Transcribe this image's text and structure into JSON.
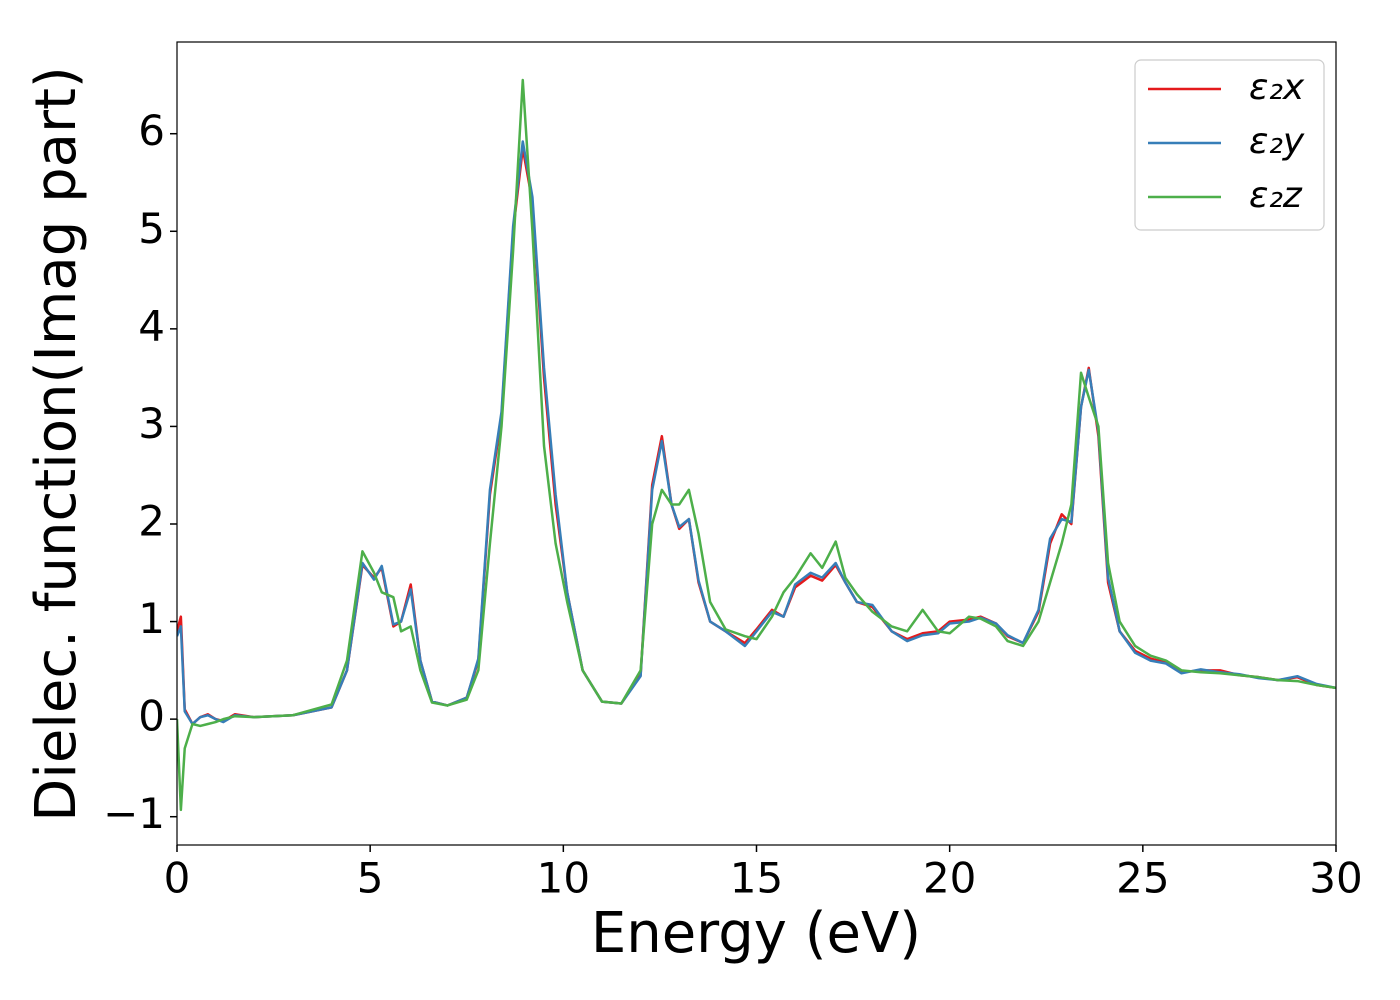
{
  "chart_data": {
    "type": "line",
    "x_label": "Energy (eV)",
    "y_label": "Dielec. function(Imag part)",
    "x": [
      0,
      0.1,
      0.2,
      0.4,
      0.6,
      0.8,
      1.0,
      1.2,
      1.5,
      2,
      3,
      4,
      4.4,
      4.8,
      5.1,
      5.3,
      5.6,
      5.8,
      6.05,
      6.3,
      6.6,
      7,
      7.5,
      7.8,
      8.1,
      8.4,
      8.7,
      8.95,
      9.2,
      9.5,
      9.8,
      10.1,
      10.5,
      11,
      11.5,
      12,
      12.3,
      12.55,
      12.8,
      13.0,
      13.25,
      13.5,
      13.8,
      14.2,
      14.7,
      15.0,
      15.4,
      15.7,
      16.0,
      16.4,
      16.7,
      17.05,
      17.3,
      17.6,
      18.0,
      18.5,
      18.9,
      19.3,
      19.7,
      20.0,
      20.5,
      20.8,
      21.2,
      21.5,
      21.9,
      22.3,
      22.6,
      22.9,
      23.15,
      23.4,
      23.6,
      23.85,
      24.1,
      24.4,
      24.8,
      25.2,
      25.6,
      26.0,
      26.5,
      27.0,
      27.5,
      28.0,
      28.5,
      29.0,
      29.5,
      30
    ],
    "series": [
      {
        "name": "ε₂x",
        "color": "#e41a1c",
        "values": [
          0.9,
          1.05,
          0.1,
          -0.05,
          0.02,
          0.05,
          0.0,
          -0.02,
          0.05,
          0.02,
          0.04,
          0.12,
          0.5,
          1.58,
          1.45,
          1.55,
          0.95,
          1.0,
          1.38,
          0.6,
          0.18,
          0.14,
          0.22,
          0.6,
          2.3,
          3.1,
          5.0,
          5.85,
          5.3,
          3.5,
          2.2,
          1.3,
          0.5,
          0.18,
          0.16,
          0.45,
          2.4,
          2.9,
          2.2,
          1.95,
          2.05,
          1.4,
          1.0,
          0.9,
          0.78,
          0.92,
          1.12,
          1.05,
          1.35,
          1.47,
          1.42,
          1.58,
          1.4,
          1.2,
          1.15,
          0.9,
          0.82,
          0.88,
          0.9,
          1.0,
          1.02,
          1.05,
          0.98,
          0.85,
          0.78,
          1.1,
          1.8,
          2.1,
          2.0,
          3.2,
          3.6,
          2.9,
          1.4,
          0.9,
          0.7,
          0.62,
          0.58,
          0.48,
          0.5,
          0.5,
          0.45,
          0.43,
          0.4,
          0.43,
          0.35,
          0.32
        ]
      },
      {
        "name": "ε₂y",
        "color": "#377eb8",
        "values": [
          0.85,
          0.95,
          0.08,
          -0.05,
          0.02,
          0.04,
          0.0,
          -0.03,
          0.04,
          0.02,
          0.04,
          0.12,
          0.5,
          1.6,
          1.43,
          1.57,
          0.97,
          1.0,
          1.33,
          0.6,
          0.18,
          0.14,
          0.22,
          0.62,
          2.35,
          3.15,
          5.05,
          5.92,
          5.35,
          3.6,
          2.3,
          1.3,
          0.5,
          0.18,
          0.16,
          0.44,
          2.35,
          2.85,
          2.2,
          1.97,
          2.05,
          1.42,
          1.0,
          0.9,
          0.75,
          0.9,
          1.1,
          1.05,
          1.38,
          1.5,
          1.45,
          1.6,
          1.4,
          1.2,
          1.17,
          0.9,
          0.8,
          0.86,
          0.88,
          0.98,
          1.0,
          1.04,
          0.98,
          0.86,
          0.78,
          1.12,
          1.85,
          2.05,
          2.02,
          3.2,
          3.58,
          2.95,
          1.45,
          0.9,
          0.68,
          0.6,
          0.57,
          0.47,
          0.51,
          0.48,
          0.46,
          0.42,
          0.4,
          0.44,
          0.36,
          0.32
        ]
      },
      {
        "name": "ε₂z",
        "color": "#4daf4a",
        "values": [
          0,
          -0.93,
          -0.3,
          -0.05,
          -0.07,
          -0.05,
          -0.03,
          0.0,
          0.03,
          0.02,
          0.04,
          0.15,
          0.6,
          1.72,
          1.5,
          1.3,
          1.25,
          0.9,
          0.95,
          0.5,
          0.17,
          0.14,
          0.2,
          0.5,
          1.8,
          3.0,
          4.8,
          6.55,
          5.0,
          2.8,
          1.8,
          1.2,
          0.5,
          0.18,
          0.16,
          0.5,
          2.0,
          2.35,
          2.2,
          2.2,
          2.35,
          1.9,
          1.2,
          0.92,
          0.85,
          0.82,
          1.05,
          1.3,
          1.45,
          1.7,
          1.55,
          1.82,
          1.45,
          1.28,
          1.1,
          0.95,
          0.9,
          1.12,
          0.9,
          0.88,
          1.05,
          1.03,
          0.95,
          0.8,
          0.75,
          1.0,
          1.4,
          1.8,
          2.2,
          3.55,
          3.3,
          3.0,
          1.6,
          1.0,
          0.75,
          0.65,
          0.6,
          0.5,
          0.48,
          0.47,
          0.45,
          0.43,
          0.4,
          0.39,
          0.35,
          0.32
        ]
      }
    ],
    "xlim": [
      0,
      30
    ],
    "xticks": [
      0,
      5,
      10,
      15,
      20,
      25,
      30
    ],
    "ylim": [
      -1.29,
      6.94
    ],
    "yticks": [
      {
        "value": -1,
        "label": "−1"
      },
      0,
      1,
      2,
      3,
      4,
      5,
      6
    ],
    "legend": "upper right"
  }
}
